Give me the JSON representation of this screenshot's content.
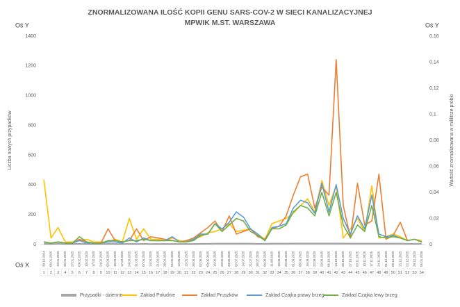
{
  "chart_data": {
    "type": "line",
    "title": "ZNORMALIZOWANA ILOŚĆ KOPII GENU SARS-COV-2 W SIECI KANALIZACYJNEJ",
    "subtitle": "MPWIK M.ST. WARSZAWA",
    "y_axis_name": "Oś Y",
    "y2_axis_name": "Oś Y",
    "x_axis_name": "Oś X",
    "y_label": "Liczba nowych przypadków",
    "y2_label": "Wartość znormalizowana  w mililitrze próbki",
    "categories": [
      "1",
      "2",
      "3",
      "4",
      "5",
      "6",
      "7",
      "8",
      "9",
      "10",
      "11",
      "12",
      "13",
      "14",
      "15",
      "16",
      "17",
      "18",
      "19",
      "20",
      "21",
      "22",
      "23",
      "24",
      "25",
      "26",
      "27",
      "28",
      "29",
      "30",
      "31",
      "32",
      "33",
      "34",
      "35",
      "36",
      "37",
      "38",
      "39",
      "40",
      "41",
      "42",
      "43",
      "44",
      "45",
      "46",
      "47",
      "48",
      "49",
      "50",
      "51",
      "52",
      "53",
      "54"
    ],
    "dates": [
      "30.12.2024",
      "06.01.2025",
      "13.01.2025",
      "20.01.2025",
      "27.01.2025",
      "03.02.2025",
      "10.02.2025",
      "17.02.2025",
      "24.02.2025",
      "03.03.2025",
      "10.03.2025",
      "17.03.2025",
      "24.03.2025",
      "31.03.2025",
      "07.04.2025",
      "14.04.2025",
      "21.04.2025",
      "28.04.2025",
      "05.05.2025",
      "12.05.2025",
      "19.05.2025",
      "26.05.2025",
      "02.06.2025",
      "09.06.2025",
      "16.06.2025",
      "23.06.2025",
      "30.06.2025",
      "07.07.2025",
      "14.07.2025",
      "21.07.2025",
      "28.07.2025",
      "04.08.2025",
      "11.08.2025",
      "18.08.2025",
      "25.08.2025",
      "01.09.2025",
      "08.09.2025",
      "15.09.2025",
      "22.09.2025",
      "29.09.2025",
      "06.10.2025",
      "13.10.2025",
      "20.10.2025",
      "27.10.2025",
      "03.11.2025",
      "10.11.2025",
      "17.11.2025",
      "24.11.2025",
      "01.12.2025",
      "08.12.2025",
      "15.12.2025",
      "22.12.2025",
      "29.12.2025",
      "05.01.2026"
    ],
    "ylim": [
      0,
      1400
    ],
    "yticks": [
      0,
      200,
      400,
      600,
      800,
      1000,
      1200,
      1400
    ],
    "y2lim": [
      0,
      0.16
    ],
    "y2ticks": [
      0,
      {
        "value": 0.02,
        "label": "0,02"
      },
      {
        "value": 0.04,
        "label": "0,04"
      },
      {
        "value": 0.06,
        "label": "0,06"
      },
      {
        "value": 0.08,
        "label": "0,08"
      },
      {
        "value": 0.1,
        "label": "0,1"
      },
      {
        "value": 0.12,
        "label": "0,12"
      },
      {
        "value": 0.14,
        "label": "0,14"
      },
      {
        "value": 0.16,
        "label": "0,16"
      }
    ],
    "series": [
      {
        "name": "Przypadki - dzienne",
        "color": "#a6a6a6",
        "values": [
          4,
          3,
          5,
          3,
          3,
          4,
          3,
          3,
          3,
          4,
          3,
          3,
          4,
          3,
          4,
          3,
          3,
          3,
          3,
          3,
          3,
          3,
          4,
          4,
          5,
          5,
          5,
          5,
          5,
          5,
          4,
          4,
          5,
          5,
          5,
          6,
          6,
          6,
          6,
          6,
          6,
          6,
          6,
          5,
          5,
          5,
          5,
          5,
          5,
          5,
          5,
          4,
          4,
          4
        ]
      },
      {
        "name": "Zakład Południe",
        "color": "#ffc000",
        "axis": "y2",
        "values": [
          0.05,
          0.005,
          0.013,
          0.002,
          0.002,
          0.003,
          0.004,
          0.002,
          0.002,
          0.002,
          0.004,
          0.002,
          0.02,
          0.004,
          0.012,
          0.004,
          0.004,
          0.003,
          0.005,
          0.003,
          0.002,
          0.004,
          0.006,
          0.009,
          0.01,
          0.012,
          0.016,
          0.01,
          0.011,
          0.012,
          0.008,
          0.004,
          0.016,
          0.018,
          0.02,
          0.024,
          0.03,
          0.035,
          0.025,
          0.049,
          0.03,
          0.045,
          0.005,
          0.012,
          0.02,
          0.01,
          0.045,
          0.005,
          0.006,
          0.008,
          0.006,
          0.003,
          0.004,
          0.003
        ]
      },
      {
        "name": "Zakład Pruszków",
        "color": "#ed7d31",
        "axis": "y2",
        "values": [
          0.002,
          0.001,
          0.002,
          0.001,
          0.001,
          0.004,
          0.002,
          0.001,
          0.001,
          0.012,
          0.003,
          0.002,
          0.003,
          0.012,
          0.003,
          0.006,
          0.005,
          0.004,
          0.003,
          0.002,
          0.003,
          0.005,
          0.009,
          0.013,
          0.018,
          0.01,
          0.022,
          0.008,
          0.01,
          0.012,
          0.006,
          0.004,
          0.012,
          0.014,
          0.022,
          0.038,
          0.052,
          0.054,
          0.028,
          0.044,
          0.038,
          0.142,
          0.03,
          0.005,
          0.047,
          0.015,
          0.018,
          0.054,
          0.004,
          0.007,
          0.017,
          0.003,
          0.004,
          0.002
        ]
      },
      {
        "name": "Zakład Czajka prawy brzeg",
        "color": "#5b9bd5",
        "axis": "y2",
        "values": [
          0.002,
          0.001,
          0.002,
          0.001,
          0.001,
          0.003,
          0.001,
          0.001,
          0.001,
          0.002,
          0.002,
          0.001,
          0.005,
          0.002,
          0.005,
          0.003,
          0.003,
          0.003,
          0.006,
          0.002,
          0.002,
          0.004,
          0.008,
          0.008,
          0.016,
          0.012,
          0.017,
          0.025,
          0.021,
          0.012,
          0.008,
          0.003,
          0.013,
          0.014,
          0.016,
          0.028,
          0.034,
          0.032,
          0.024,
          0.047,
          0.025,
          0.046,
          0.02,
          0.008,
          0.022,
          0.012,
          0.038,
          0.008,
          0.006,
          0.007,
          0.005,
          0.003,
          0.004,
          0.002
        ]
      },
      {
        "name": "Zakład Czajka lewy brzeg",
        "color": "#70ad47",
        "axis": "y2",
        "values": [
          0.002,
          0.001,
          0.002,
          0.001,
          0.001,
          0.006,
          0.002,
          0.001,
          0.001,
          0.003,
          0.003,
          0.002,
          0.003,
          0.003,
          0.004,
          0.003,
          0.003,
          0.003,
          0.003,
          0.002,
          0.002,
          0.003,
          0.007,
          0.008,
          0.016,
          0.01,
          0.015,
          0.02,
          0.018,
          0.01,
          0.007,
          0.003,
          0.012,
          0.012,
          0.015,
          0.025,
          0.03,
          0.028,
          0.022,
          0.04,
          0.022,
          0.04,
          0.015,
          0.005,
          0.015,
          0.01,
          0.03,
          0.006,
          0.005,
          0.006,
          0.005,
          0.003,
          0.004,
          0.002
        ]
      }
    ]
  }
}
